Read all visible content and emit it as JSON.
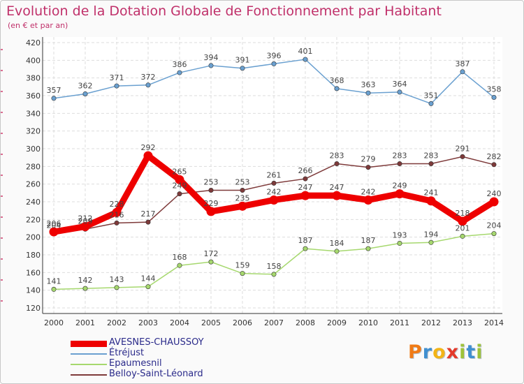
{
  "title": "Evolution de la Dotation Globale de Fonctionnement par Habitant",
  "subtitle": "(en € et par an)",
  "brand": {
    "letters": [
      "P",
      "r",
      "o",
      "x",
      "i",
      "t",
      "i"
    ],
    "colors": [
      "#f07b16",
      "#3f8fd0",
      "#f2b417",
      "#e33a2b",
      "#9ec23a",
      "#3f8fd0",
      "#9ec23a"
    ]
  },
  "chart_data": {
    "type": "line",
    "x": [
      "2000",
      "2001",
      "2002",
      "2003",
      "2004",
      "2005",
      "2006",
      "2007",
      "2008",
      "2009",
      "2010",
      "2011",
      "2012",
      "2013",
      "2014"
    ],
    "ylim": [
      120,
      420
    ],
    "yticks": [
      "120",
      "140",
      "160",
      "180",
      "200",
      "220",
      "240",
      "260",
      "280",
      "300",
      "320",
      "340",
      "360",
      "380",
      "400",
      "420"
    ],
    "grid": true,
    "legend_position": "bottom-left",
    "series": [
      {
        "name": "AVESNES-CHAUSSOY",
        "color": "#ee0000",
        "values": [
          206,
          212,
          228,
          292,
          265,
          229,
          235,
          242,
          247,
          247,
          242,
          249,
          241,
          218,
          240
        ],
        "labels": [
          "206",
          "212",
          "228",
          "292",
          "265",
          "229",
          "235",
          "242",
          "247",
          "247",
          "242",
          "249",
          "241",
          "218",
          "240"
        ]
      },
      {
        "name": "Étréjust",
        "color": "#6aa0d0",
        "values": [
          357,
          362,
          371,
          372,
          386,
          394,
          391,
          396,
          401,
          368,
          363,
          364,
          351,
          387,
          358
        ],
        "labels": [
          "357",
          "362",
          "371",
          "372",
          "386",
          "394",
          "391",
          "396",
          "401",
          "368",
          "363",
          "364",
          "351",
          "387",
          "358"
        ]
      },
      {
        "name": "Epaumesnil",
        "color": "#a6d86e",
        "values": [
          141,
          142,
          143,
          144,
          168,
          172,
          159,
          158,
          187,
          184,
          187,
          193,
          194,
          201,
          204
        ],
        "labels": [
          "141",
          "142",
          "143",
          "144",
          "168",
          "172",
          "159",
          "158",
          "187",
          "184",
          "187",
          "193",
          "194",
          "201",
          "204"
        ]
      },
      {
        "name": "Belloy-Saint-Léonard",
        "color": "#7e3a3a",
        "values": [
          204,
          209,
          216,
          217,
          249,
          253,
          253,
          261,
          266,
          283,
          279,
          283,
          283,
          291,
          282
        ],
        "labels": [
          "204",
          "209",
          "216",
          "217",
          "249",
          "253",
          "253",
          "261",
          "266",
          "283",
          "279",
          "283",
          "283",
          "291",
          "282"
        ]
      }
    ]
  }
}
